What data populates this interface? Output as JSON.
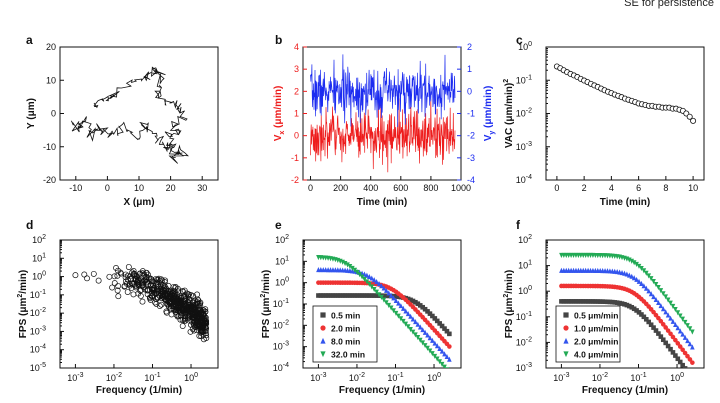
{
  "header_text": "SE for persistence",
  "colors": {
    "red": "#ee1c1c",
    "blue": "#1c2cf0",
    "black": "#111111",
    "red_marker": "#ee3333",
    "blue_marker": "#3355ee",
    "green_marker": "#22aa55",
    "gray_marker": "#444444"
  },
  "chart_data": [
    {
      "panel": "a",
      "type": "line",
      "xlabel": "X (μm)",
      "ylabel": "Y (μm)",
      "xlim": [
        -15,
        35
      ],
      "ylim": [
        -20,
        20
      ],
      "xticks": [
        "-10",
        "0",
        "10",
        "20",
        "30"
      ],
      "yticks": [
        "-20",
        "-10",
        "0",
        "10",
        "20"
      ],
      "waypoints": [
        [
          -4,
          2
        ],
        [
          -2,
          4
        ],
        [
          3,
          6
        ],
        [
          8,
          10
        ],
        [
          12,
          11
        ],
        [
          15,
          13
        ],
        [
          17,
          11
        ],
        [
          16,
          7
        ],
        [
          18,
          4
        ],
        [
          22,
          2
        ],
        [
          24,
          0
        ],
        [
          21,
          -3
        ],
        [
          23,
          -6
        ],
        [
          19,
          -7
        ],
        [
          22,
          -12
        ],
        [
          24,
          -11
        ],
        [
          21,
          -14
        ],
        [
          20,
          -10
        ],
        [
          17,
          -9
        ],
        [
          15,
          -6
        ],
        [
          12,
          -3
        ],
        [
          10,
          -7
        ],
        [
          5,
          -4
        ],
        [
          2,
          -6
        ],
        [
          -2,
          -4
        ],
        [
          -5,
          -6
        ],
        [
          -7,
          -2
        ],
        [
          -9,
          -4
        ],
        [
          -11,
          -3
        ]
      ],
      "seed": 11
    },
    {
      "panel": "b",
      "type": "line",
      "xlabel": "Time (min)",
      "ylabel_left": "V",
      "ylabel_left_sub": "x",
      "ylabel_left_unit": " (μm/min)",
      "ylabel_right": "V",
      "ylabel_right_sub": "y",
      "ylabel_right_unit": " (μm/min)",
      "xlim": [
        -50,
        1000
      ],
      "ylim_left": [
        -2,
        4
      ],
      "ylim_right": [
        -4,
        2
      ],
      "xticks": [
        "0",
        "200",
        "400",
        "600",
        "800",
        "1000"
      ],
      "yticks_left": [
        "-2",
        "-1",
        "0",
        "1",
        "2",
        "3",
        "4"
      ],
      "yticks_right": [
        "-4",
        "-3",
        "-2",
        "-1",
        "0",
        "1",
        "2"
      ],
      "series": [
        {
          "axis": "left",
          "mean": 0.0,
          "amplitude": 0.55,
          "t_end": 960,
          "n": 420,
          "seed": 3
        },
        {
          "axis": "right",
          "mean": -0.05,
          "amplitude": 0.55,
          "t_end": 960,
          "n": 420,
          "seed": 7
        }
      ]
    },
    {
      "panel": "c",
      "type": "scatter",
      "xlabel": "Time (min)",
      "ylabel": "VAC (μm/min)",
      "ylabel_sup": "2",
      "xlim": [
        -0.8,
        10.8
      ],
      "ylog": [
        -4,
        0
      ],
      "xticks": [
        "0",
        "2",
        "4",
        "6",
        "8",
        "10"
      ],
      "x": [
        0,
        0.25,
        0.5,
        0.75,
        1,
        1.25,
        1.5,
        1.75,
        2,
        2.25,
        2.5,
        2.75,
        3,
        3.25,
        3.5,
        3.75,
        4,
        4.25,
        4.5,
        4.75,
        5,
        5.25,
        5.5,
        5.75,
        6,
        6.25,
        6.5,
        6.75,
        7,
        7.25,
        7.5,
        7.75,
        8,
        8.25,
        8.5,
        8.75,
        9,
        9.25,
        9.5,
        9.75,
        10
      ],
      "y": [
        0.26,
        0.23,
        0.2,
        0.175,
        0.155,
        0.14,
        0.125,
        0.11,
        0.098,
        0.088,
        0.078,
        0.07,
        0.063,
        0.056,
        0.05,
        0.045,
        0.041,
        0.037,
        0.034,
        0.031,
        0.028,
        0.026,
        0.024,
        0.022,
        0.02,
        0.019,
        0.018,
        0.017,
        0.017,
        0.016,
        0.016,
        0.015,
        0.015,
        0.015,
        0.014,
        0.014,
        0.013,
        0.012,
        0.01,
        0.008,
        0.006
      ]
    },
    {
      "panel": "d",
      "type": "scatter",
      "xlabel": "Frequency (1/min)",
      "ylabel": "FPS (μm",
      "ylabel_sup": "2",
      "ylabel_end": "/min)",
      "xlog": [
        -3.4,
        0.7
      ],
      "ylog": [
        -5,
        2
      ],
      "seed": 5,
      "n": 560,
      "f_min": 0.001,
      "f_max": 2.5,
      "x": [
        0.001,
        0.0017,
        0.002,
        0.003,
        0.004
      ],
      "y": [
        1.2,
        1.3,
        0.8,
        1.4,
        0.6
      ]
    },
    {
      "panel": "e",
      "type": "scatter",
      "xlabel": "Frequency (1/min)",
      "ylabel": "FPS (μm",
      "ylabel_sup": "2",
      "ylabel_end": "/min)",
      "xlog": [
        -3.4,
        0.7
      ],
      "ylog": [
        -4,
        2
      ],
      "legend_position": "bottom-left",
      "series": [
        {
          "name": "0.5 min",
          "marker": "square",
          "color": "#444444",
          "amplitude": 0.25,
          "tau": 0.5
        },
        {
          "name": "2.0 min",
          "marker": "circle",
          "color": "#ee3333",
          "amplitude": 1.0,
          "tau": 2.0
        },
        {
          "name": "8.0 min",
          "marker": "triangle-up",
          "color": "#3355ee",
          "amplitude": 4.0,
          "tau": 8.0
        },
        {
          "name": "32.0 min",
          "marker": "triangle-down",
          "color": "#22aa55",
          "amplitude": 16.0,
          "tau": 32.0
        }
      ]
    },
    {
      "panel": "f",
      "type": "scatter",
      "xlabel": "Frequency (1/min)",
      "ylabel": "FPS (μm",
      "ylabel_sup": "2",
      "ylabel_end": "/min)",
      "xlog": [
        -3.4,
        0.7
      ],
      "ylog": [
        -3,
        2
      ],
      "legend_position": "bottom-left",
      "series": [
        {
          "name": "0.5 μm/min",
          "marker": "square",
          "color": "#444444",
          "amplitude": 0.4,
          "tau": 2.0
        },
        {
          "name": "1.0 μm/min",
          "marker": "circle",
          "color": "#ee3333",
          "amplitude": 1.6,
          "tau": 2.0
        },
        {
          "name": "2.0 μm/min",
          "marker": "triangle-up",
          "color": "#3355ee",
          "amplitude": 6.4,
          "tau": 2.0
        },
        {
          "name": "4.0 μm/min",
          "marker": "triangle-down",
          "color": "#22aa55",
          "amplitude": 25.6,
          "tau": 2.0
        }
      ]
    }
  ],
  "log_ticks": {
    "d_x": [
      "10",
      "10",
      "10",
      "10"
    ],
    "d_x_exp": [
      "-3",
      "-2",
      "-1",
      "0"
    ],
    "d_y_exp": [
      "-5",
      "-4",
      "-3",
      "-2",
      "-1",
      "0",
      "1",
      "2"
    ],
    "e_y_exp": [
      "-4",
      "-3",
      "-2",
      "-1",
      "0",
      "1",
      "2"
    ],
    "f_y_exp": [
      "-3",
      "-2",
      "-1",
      "0",
      "1",
      "2"
    ],
    "c_y_exp": [
      "-4",
      "-3",
      "-2",
      "-1",
      "0"
    ]
  },
  "panel_labels": [
    "a",
    "b",
    "c",
    "d",
    "e",
    "f"
  ]
}
